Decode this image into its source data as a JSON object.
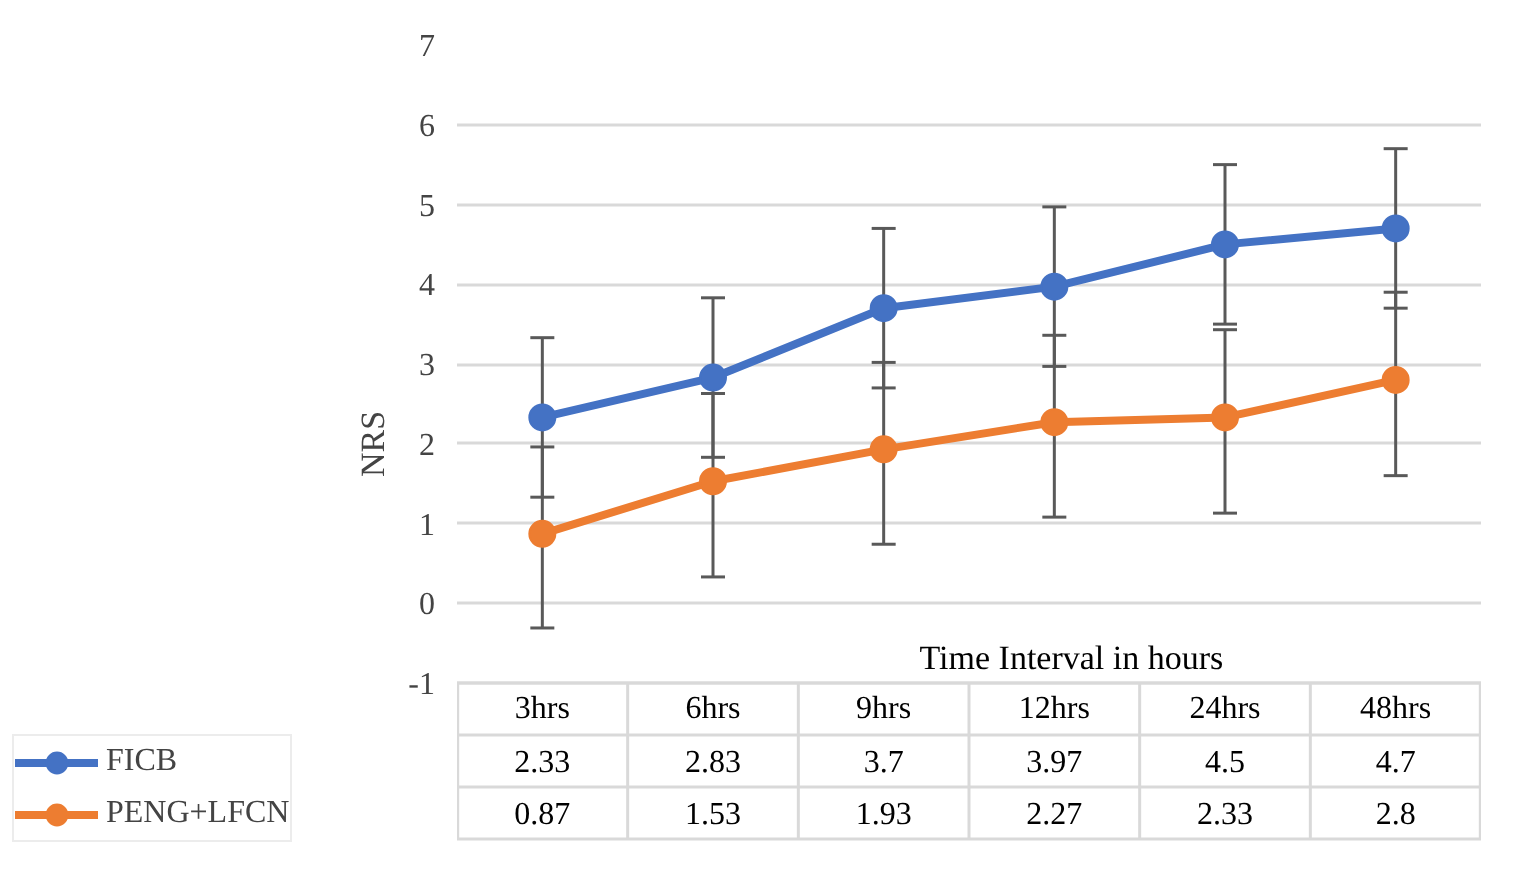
{
  "chart_data": {
    "type": "line",
    "ylabel": "NRS",
    "xlabel": "Time Interval in hours",
    "categories": [
      "3hrs",
      "6hrs",
      "9hrs",
      "12hrs",
      "24hrs",
      "48hrs"
    ],
    "ylim": [
      -1,
      7
    ],
    "yticks": [
      -1,
      0,
      1,
      2,
      3,
      4,
      5,
      6,
      7
    ],
    "grid": "y",
    "marker": "circle",
    "line_style": "solid",
    "legend": "bottom",
    "data_labels": true,
    "series": [
      {
        "name": "FICB",
        "color": "#4472c4",
        "values": [
          2.33,
          2.83,
          3.7,
          3.97,
          4.5,
          4.7
        ],
        "errors": [
          1,
          1,
          1,
          1,
          1,
          1
        ]
      },
      {
        "name": "PENG+LFCN",
        "color": "#ed7d31",
        "values": [
          0.87,
          1.53,
          1.93,
          2.27,
          2.33,
          2.8
        ],
        "errors": [
          [
            -0.31,
            1.96
          ],
          [
            0.33,
            2.63
          ],
          [
            0.74,
            3.02
          ],
          [
            1.08,
            3.36
          ],
          [
            1.13,
            3.43
          ],
          [
            1.6,
            3.9
          ]
        ]
      }
    ]
  }
}
